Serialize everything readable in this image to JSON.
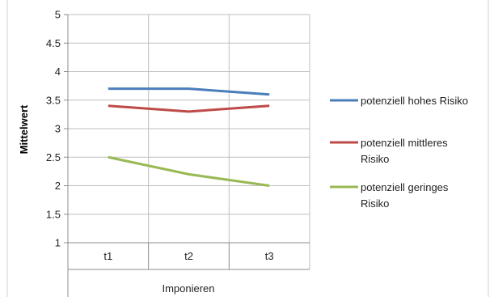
{
  "chart_data": {
    "type": "line",
    "title": "",
    "xlabel": "Imponieren",
    "ylabel": "Mittelwert",
    "categories": [
      "t1",
      "t2",
      "t3"
    ],
    "ylim": [
      1,
      5
    ],
    "yticks": [
      "1",
      "1.5",
      "2",
      "2.5",
      "3",
      "3.5",
      "4",
      "4.5",
      "5"
    ],
    "grid": true,
    "legend_position": "right",
    "series": [
      {
        "name": "potenziell hohes Risiko",
        "legend_lines": [
          "potenziell hohes Risiko"
        ],
        "color": "#4a7ebb",
        "values": [
          3.7,
          3.7,
          3.6
        ]
      },
      {
        "name": "potenziell mittleres Risiko",
        "legend_lines": [
          "potenziell mittleres",
          "Risiko"
        ],
        "color": "#be4b48",
        "values": [
          3.4,
          3.3,
          3.4
        ]
      },
      {
        "name": "potenziell geringes Risiko",
        "legend_lines": [
          "potenziell geringes",
          "Risiko"
        ],
        "color": "#98b954",
        "values": [
          2.5,
          2.2,
          2.0
        ]
      }
    ]
  }
}
